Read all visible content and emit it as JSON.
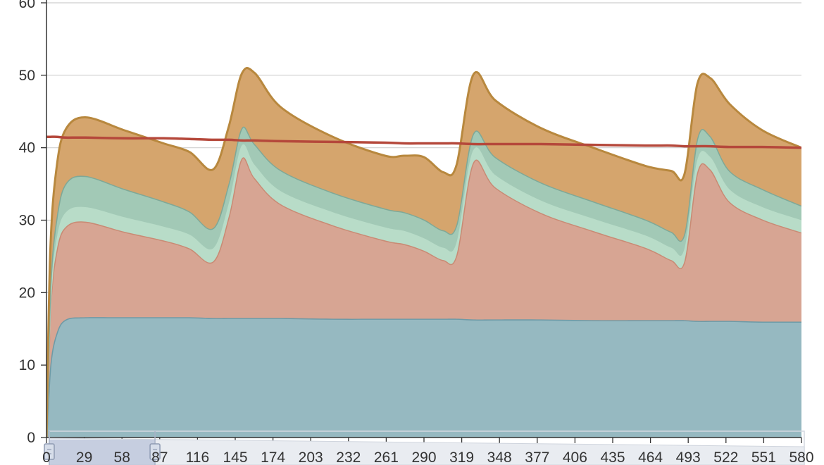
{
  "chart_data": {
    "type": "area",
    "stacked": true,
    "title": "",
    "xlabel": "",
    "ylabel": "",
    "ylim": [
      0,
      60
    ],
    "xlim": [
      0,
      580
    ],
    "grid": true,
    "legend": "none",
    "y_ticks": [
      "0",
      "10",
      "20",
      "30",
      "40",
      "50",
      "60"
    ],
    "x_ticks": [
      "0",
      "29",
      "58",
      "87",
      "116",
      "145",
      "174",
      "203",
      "232",
      "261",
      "290",
      "319",
      "348",
      "377",
      "406",
      "435",
      "464",
      "493",
      "522",
      "551",
      "580"
    ],
    "x": [
      0,
      3,
      8,
      15,
      30,
      60,
      90,
      110,
      128,
      140,
      150,
      160,
      180,
      220,
      260,
      275,
      290,
      305,
      315,
      328,
      345,
      380,
      420,
      460,
      480,
      490,
      500,
      510,
      525,
      550,
      580
    ],
    "series": [
      {
        "color": "#96b9c1",
        "stroke": "#6e9aa6",
        "values": [
          0,
          10,
          14.5,
          16.3,
          16.6,
          16.6,
          16.6,
          16.6,
          16.5,
          16.5,
          16.5,
          16.5,
          16.5,
          16.4,
          16.4,
          16.4,
          16.4,
          16.4,
          16.4,
          16.3,
          16.3,
          16.3,
          16.2,
          16.2,
          16.2,
          16.2,
          16.1,
          16.1,
          16.1,
          16.0,
          16.0
        ]
      },
      {
        "color": "#d7a593",
        "stroke": "#c98a74",
        "values": [
          0,
          8,
          11.5,
          12.8,
          13.2,
          11.8,
          10.6,
          9.5,
          7.8,
          14.0,
          22.0,
          19.3,
          15.7,
          12.9,
          10.8,
          10.3,
          9.4,
          8.1,
          8.8,
          21.7,
          18.2,
          14.7,
          12.3,
          10.0,
          8.3,
          8.1,
          20.5,
          20.9,
          16.4,
          14.1,
          12.3
        ]
      },
      {
        "color": "#b8dcc8",
        "stroke": "#b8dcc8",
        "values": [
          0,
          1.0,
          1.6,
          2.0,
          2.0,
          2.0,
          1.9,
          1.9,
          1.8,
          1.8,
          1.8,
          1.8,
          1.8,
          1.8,
          1.8,
          1.8,
          1.7,
          1.7,
          1.7,
          1.7,
          1.7,
          1.7,
          1.7,
          1.7,
          1.7,
          1.7,
          1.7,
          1.7,
          1.7,
          1.7,
          1.7
        ]
      },
      {
        "color": "#a2c9b6",
        "stroke": "#7fa897",
        "values": [
          0,
          2.0,
          3.0,
          4.0,
          4.3,
          3.9,
          3.5,
          3.2,
          2.8,
          2.8,
          2.4,
          2.9,
          2.9,
          2.7,
          2.6,
          2.6,
          2.6,
          2.4,
          2.5,
          2.3,
          2.5,
          2.5,
          2.4,
          2.2,
          2.2,
          2.1,
          3.0,
          2.9,
          2.6,
          2.5,
          2.0
        ]
      },
      {
        "color": "#d5a56d",
        "stroke": "#b8883e",
        "values": [
          0,
          5.0,
          7.0,
          7.5,
          8.1,
          8.1,
          8.0,
          8.2,
          8.1,
          7.8,
          7.5,
          9.8,
          8.7,
          7.7,
          7.3,
          7.8,
          8.6,
          8.0,
          8.2,
          8.1,
          7.8,
          7.5,
          7.4,
          7.4,
          8.4,
          8.2,
          7.5,
          8.0,
          9.2,
          8.1,
          8.0
        ]
      },
      {
        "type": "line",
        "color": "#b5483b",
        "values": [
          41.5,
          41.5,
          41.5,
          41.4,
          41.4,
          41.3,
          41.3,
          41.2,
          41.1,
          41.1,
          41.0,
          41.0,
          40.9,
          40.8,
          40.7,
          40.6,
          40.6,
          40.6,
          40.6,
          40.5,
          40.5,
          40.5,
          40.4,
          40.3,
          40.3,
          40.2,
          40.2,
          40.2,
          40.1,
          40.1,
          40.0
        ]
      }
    ],
    "zoom_slider": {
      "range_start": 0,
      "range_end": 0.14
    }
  }
}
